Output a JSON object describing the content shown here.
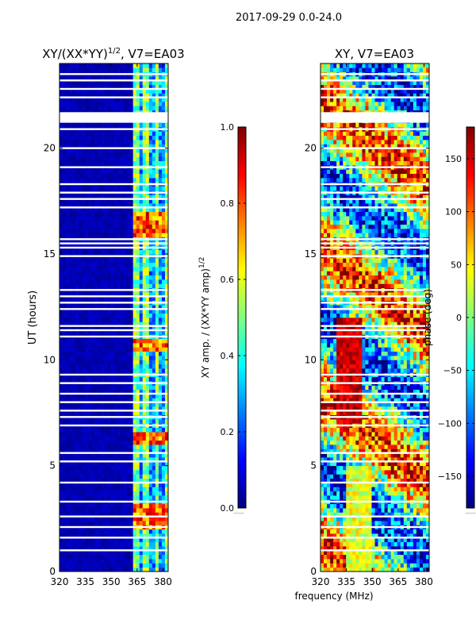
{
  "figure": {
    "suptitle": "2017-09-29 0.0-24.0",
    "xlabel": "frequency (MHz)"
  },
  "colors": {
    "jet": [
      "#00007f",
      "#0000ff",
      "#007fff",
      "#00ffff",
      "#7fff7f",
      "#ffff00",
      "#ff7f00",
      "#ff0000",
      "#7f0000"
    ],
    "background": "#ffffff"
  },
  "chart_data": [
    {
      "type": "heatmap",
      "title": "XY/(XX*YY)",
      "title_exponent": "1/2",
      "title_suffix": ", V7=EA03",
      "quantity": "amplitude",
      "xlabel": "",
      "ylabel": "UT (hours)",
      "xlim": [
        320,
        383
      ],
      "ylim": [
        0,
        24
      ],
      "xticks": [
        320,
        335,
        350,
        365,
        380
      ],
      "yticks": [
        0,
        5,
        10,
        15,
        20
      ],
      "colorbar": {
        "label": "XY amp. / (XX*YY amp)",
        "label_exponent": "1/2",
        "range": [
          0.0,
          1.0
        ],
        "ticks": [
          "0.0",
          "0.2",
          "0.4",
          "0.6",
          "0.8",
          "1.0"
        ],
        "tick_values": [
          0.0,
          0.2,
          0.4,
          0.6,
          0.8,
          1.0
        ]
      }
    },
    {
      "type": "heatmap",
      "title": "XY, V7=EA03",
      "quantity": "phase",
      "xlabel": "frequency (MHz)",
      "ylabel": "",
      "xlim": [
        320,
        383
      ],
      "ylim": [
        0,
        24
      ],
      "xticks": [
        320,
        335,
        350,
        365,
        380
      ],
      "yticks": [
        0,
        5,
        10,
        15,
        20
      ],
      "colorbar": {
        "label": "phase (deg)",
        "range": [
          -180,
          180
        ],
        "ticks": [
          "150",
          "100",
          "50",
          "0",
          "−50",
          "−100",
          "−150"
        ],
        "tick_values": [
          150,
          100,
          50,
          0,
          -50,
          -100,
          -150
        ]
      }
    }
  ],
  "flagged_gaps_hours": [
    1.0,
    1.6,
    2.1,
    2.6,
    3.3,
    4.2,
    5.2,
    5.6,
    6.9,
    7.3,
    7.6,
    8.0,
    8.4,
    8.9,
    9.3,
    11.1,
    11.4,
    11.6,
    12.4,
    12.7,
    13.0,
    13.3,
    14.9,
    15.3,
    15.5,
    15.7,
    17.2,
    17.6,
    17.9,
    18.3,
    19.1,
    20.0,
    20.9,
    21.6,
    22.4,
    22.8,
    23.2,
    23.5
  ]
}
